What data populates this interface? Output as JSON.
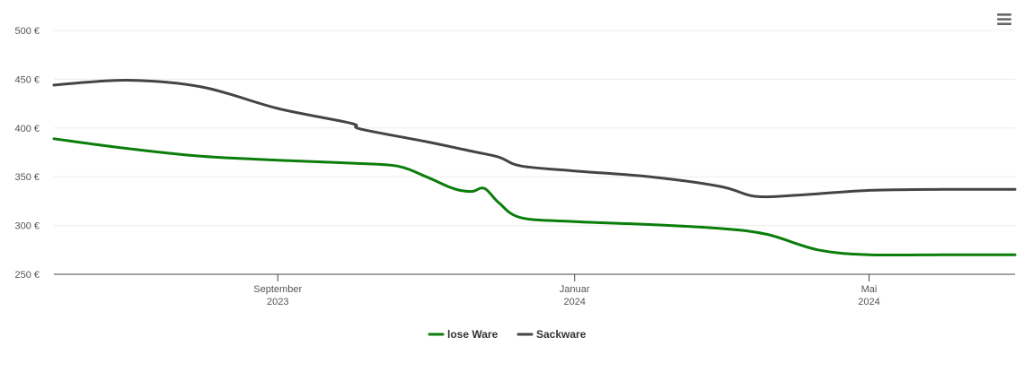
{
  "menu": {
    "icon": "hamburger-menu-icon"
  },
  "chart_data": {
    "type": "line",
    "title": "",
    "xlabel": "",
    "ylabel": "",
    "y_unit": "€",
    "ylim": [
      250,
      500
    ],
    "yticks": [
      250,
      300,
      350,
      400,
      450,
      500
    ],
    "ytick_labels": [
      "250 €",
      "300 €",
      "350 €",
      "400 €",
      "450 €",
      "500 €"
    ],
    "xlim": [
      "2023-06-01",
      "2024-06-30"
    ],
    "xticks": [
      {
        "date": "2023-09-01",
        "month": "September",
        "year": "2023"
      },
      {
        "date": "2024-01-01",
        "month": "Januar",
        "year": "2024"
      },
      {
        "date": "2024-05-01",
        "month": "Mai",
        "year": "2024"
      }
    ],
    "grid": true,
    "legend_position": "bottom-center",
    "series": [
      {
        "name": "lose Ware",
        "color": "#0a7d0a",
        "x": [
          "2023-06-01",
          "2023-07-01",
          "2023-08-01",
          "2023-09-01",
          "2023-10-01",
          "2023-10-20",
          "2023-11-01",
          "2023-11-10",
          "2023-11-15",
          "2023-11-20",
          "2023-11-25",
          "2023-12-01",
          "2023-12-10",
          "2024-01-01",
          "2024-02-01",
          "2024-03-01",
          "2024-03-20",
          "2024-04-10",
          "2024-05-01",
          "2024-06-01",
          "2024-06-30"
        ],
        "y": [
          389,
          379,
          371,
          367,
          364,
          361,
          350,
          340,
          336,
          335,
          338,
          323,
          308,
          304,
          301,
          297,
          291,
          275,
          270,
          270,
          270
        ]
      },
      {
        "name": "Sackware",
        "color": "#444444",
        "x": [
          "2023-06-01",
          "2023-07-01",
          "2023-08-01",
          "2023-09-01",
          "2023-10-01",
          "2023-10-05",
          "2023-11-01",
          "2023-11-20",
          "2023-12-01",
          "2023-12-10",
          "2024-01-01",
          "2024-02-01",
          "2024-03-01",
          "2024-03-15",
          "2024-04-01",
          "2024-05-01",
          "2024-06-01",
          "2024-06-30"
        ],
        "y": [
          444,
          449,
          442,
          420,
          405,
          399,
          386,
          376,
          370,
          361,
          356,
          350,
          340,
          330,
          331,
          336,
          337,
          337
        ]
      }
    ]
  }
}
